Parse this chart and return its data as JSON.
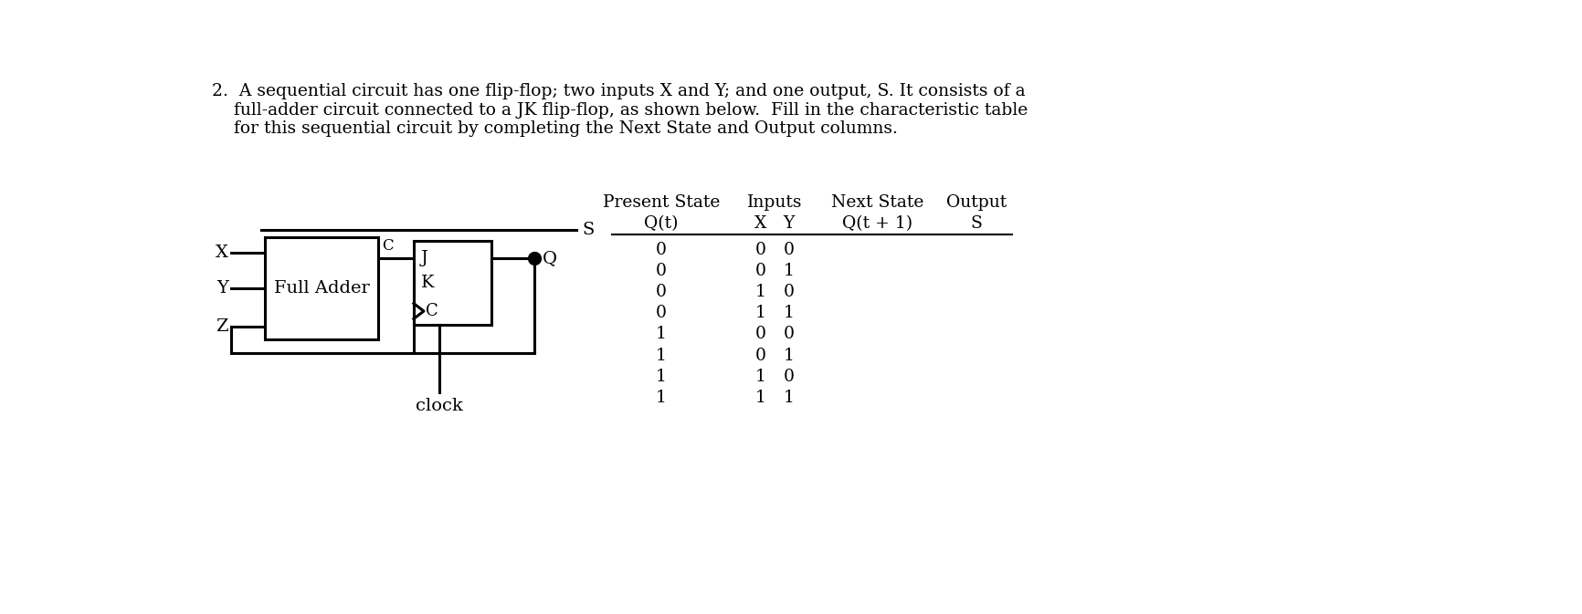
{
  "background_color": "#ffffff",
  "text_color": "#000000",
  "font_family": "serif",
  "title_lines": [
    "2.  A sequential circuit has one flip-flop; two inputs X and Y; and one output, S. It consists of a",
    "    full-adder circuit connected to a JK flip-flop, as shown below.  Fill in the characteristic table",
    "    for this sequential circuit by completing the Next State and Output columns."
  ],
  "clock_label": "clock",
  "qt_values": [
    0,
    0,
    0,
    0,
    1,
    1,
    1,
    1
  ],
  "x_values": [
    0,
    0,
    1,
    1,
    0,
    0,
    1,
    1
  ],
  "y_values": [
    0,
    1,
    0,
    1,
    0,
    1,
    0,
    1
  ]
}
